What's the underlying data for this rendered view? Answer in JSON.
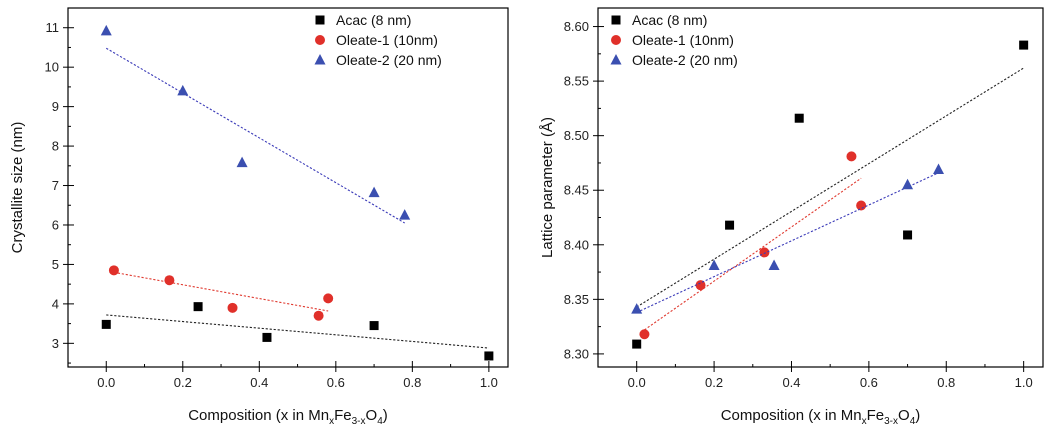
{
  "colors": {
    "acac": "#000000",
    "oleate1": "#e0302a",
    "oleate2": "#3b4fb0",
    "trend_acac": "#222222",
    "trend_oleate1": "#e03a30",
    "trend_oleate2": "#3a3ab8"
  },
  "chart_data": [
    {
      "type": "scatter",
      "title": "",
      "xlabel": "Composition (x in MnxFe3-xO4)",
      "xlabel_parts": {
        "pre": "Composition (x in Mn",
        "sub1": "x",
        "mid": "Fe",
        "sub2": "3-x",
        "mid2": "O",
        "sub3": "4",
        "post": ")"
      },
      "ylabel": "Crystallite size (nm)",
      "xlim": [
        -0.1,
        1.05
      ],
      "ylim": [
        2.4,
        11.5
      ],
      "xticks": [
        "0.0",
        "0.2",
        "0.4",
        "0.6",
        "0.8",
        "1.0"
      ],
      "yticks": [
        "3",
        "4",
        "5",
        "6",
        "7",
        "8",
        "9",
        "10",
        "11"
      ],
      "legend": "top-right",
      "series": [
        {
          "name": "Acac (8 nm)",
          "marker": "square",
          "color_key": "acac",
          "x": [
            0.0,
            0.24,
            0.42,
            0.7,
            1.0
          ],
          "y": [
            3.48,
            3.93,
            3.15,
            3.45,
            2.68
          ],
          "trend": [
            [
              0.0,
              3.72
            ],
            [
              1.0,
              2.88
            ]
          ]
        },
        {
          "name": "Oleate-1 (10nm)",
          "marker": "circle",
          "color_key": "oleate1",
          "x": [
            0.02,
            0.165,
            0.33,
            0.555,
            0.58
          ],
          "y": [
            4.85,
            4.6,
            3.9,
            3.7,
            4.14
          ],
          "trend": [
            [
              0.02,
              4.8
            ],
            [
              0.58,
              3.82
            ]
          ]
        },
        {
          "name": "Oleate-2 (20 nm)",
          "marker": "triangle",
          "color_key": "oleate2",
          "x": [
            0.0,
            0.2,
            0.355,
            0.7,
            0.78
          ],
          "y": [
            10.92,
            9.4,
            7.58,
            6.82,
            6.25
          ],
          "trend": [
            [
              0.0,
              10.48
            ],
            [
              0.78,
              6.05
            ]
          ]
        }
      ]
    },
    {
      "type": "scatter",
      "title": "",
      "xlabel": "Composition (x in MnxFe3-xO4)",
      "xlabel_parts": {
        "pre": "Composition (x in Mn",
        "sub1": "x",
        "mid": "Fe",
        "sub2": "3-x",
        "mid2": "O",
        "sub3": "4",
        "post": ")"
      },
      "ylabel": "Lattice parameter (Å)",
      "xlim": [
        -0.1,
        1.05
      ],
      "ylim": [
        8.288,
        8.617
      ],
      "xticks": [
        "0.0",
        "0.2",
        "0.4",
        "0.6",
        "0.8",
        "1.0"
      ],
      "yticks": [
        "8.30",
        "8.35",
        "8.40",
        "8.45",
        "8.50",
        "8.55",
        "8.60"
      ],
      "legend": "top-left",
      "series": [
        {
          "name": "Acac (8 nm)",
          "marker": "square",
          "color_key": "acac",
          "x": [
            0.0,
            0.24,
            0.42,
            0.7,
            1.0
          ],
          "y": [
            8.309,
            8.418,
            8.516,
            8.409,
            8.583
          ],
          "trend": [
            [
              0.0,
              8.343
            ],
            [
              1.0,
              8.562
            ]
          ]
        },
        {
          "name": "Oleate-1 (10nm)",
          "marker": "circle",
          "color_key": "oleate1",
          "x": [
            0.02,
            0.165,
            0.33,
            0.555,
            0.58
          ],
          "y": [
            8.318,
            8.363,
            8.393,
            8.481,
            8.436
          ],
          "trend": [
            [
              0.02,
              8.322
            ],
            [
              0.58,
              8.461
            ]
          ]
        },
        {
          "name": "Oleate-2 (20 nm)",
          "marker": "triangle",
          "color_key": "oleate2",
          "x": [
            0.0,
            0.2,
            0.355,
            0.7,
            0.78
          ],
          "y": [
            8.341,
            8.381,
            8.381,
            8.455,
            8.469
          ],
          "trend": [
            [
              0.0,
              8.338
            ],
            [
              0.78,
              8.466
            ]
          ]
        }
      ]
    }
  ]
}
